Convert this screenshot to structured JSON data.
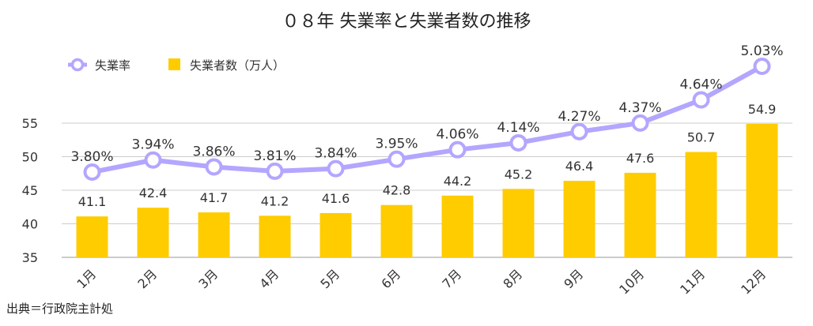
{
  "chart_data": {
    "type": "bar",
    "title": "０８年 失業率と失業者数の推移",
    "categories": [
      "1月",
      "2月",
      "3月",
      "4月",
      "5月",
      "6月",
      "7月",
      "8月",
      "9月",
      "10月",
      "11月",
      "12月"
    ],
    "series": [
      {
        "name": "失業者数（万人）",
        "type": "bar",
        "values": [
          41.1,
          42.4,
          41.7,
          41.2,
          41.6,
          42.8,
          44.2,
          45.2,
          46.4,
          47.6,
          50.7,
          54.9
        ],
        "labels": [
          "41.1",
          "42.4",
          "41.7",
          "41.2",
          "41.6",
          "42.8",
          "44.2",
          "45.2",
          "46.4",
          "47.6",
          "50.7",
          "54.9"
        ],
        "color": "#FFCC00"
      },
      {
        "name": "失業率",
        "type": "line",
        "values": [
          3.8,
          3.94,
          3.86,
          3.81,
          3.84,
          3.95,
          4.06,
          4.14,
          4.27,
          4.37,
          4.64,
          5.03
        ],
        "labels": [
          "3.80%",
          "3.94%",
          "3.86%",
          "3.81%",
          "3.84%",
          "3.95%",
          "4.06%",
          "4.14%",
          "4.27%",
          "4.37%",
          "4.64%",
          "5.03%"
        ],
        "color": "#B3A6FF"
      }
    ],
    "y_ticks": [
      "35",
      "40",
      "45",
      "50",
      "55"
    ],
    "ylim": [
      35,
      55
    ],
    "grid": true,
    "legend_position": "top-left",
    "source": "出典＝行政院主計処"
  }
}
